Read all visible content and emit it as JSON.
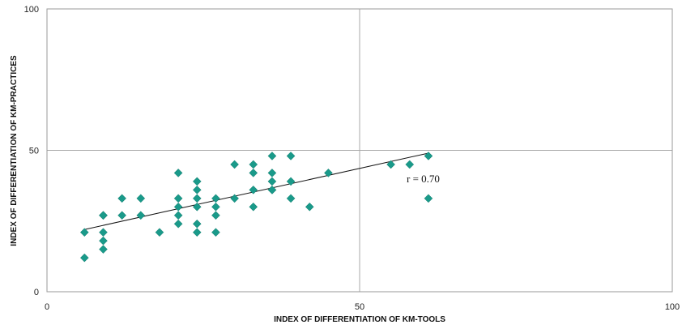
{
  "chart_data": {
    "type": "scatter",
    "title": "",
    "xlabel": "INDEX OF DIFFERENTIATION OF KM-TOOLS",
    "ylabel": "INDEX OF DIFFERENTIATION OF KM-PRACTICES",
    "xlim": [
      0,
      100
    ],
    "ylim": [
      0,
      100
    ],
    "x_ticks": [
      "0",
      "50",
      "100"
    ],
    "y_ticks": [
      "0",
      "50",
      "100"
    ],
    "grid": true,
    "legend": "none",
    "marker_color": "#1a9a8a",
    "trendline_color": "#111111",
    "annotation": "r = 0.70",
    "trendline": {
      "x": [
        6,
        61
      ],
      "y": [
        22,
        49
      ]
    },
    "series": [
      {
        "x": [
          6,
          6,
          9,
          9,
          9,
          9,
          9,
          12,
          12,
          15,
          15,
          18,
          21,
          21,
          21,
          21,
          21,
          24,
          24,
          24,
          24,
          24,
          24,
          27,
          27,
          27,
          27,
          30,
          30,
          33,
          33,
          33,
          33,
          36,
          36,
          36,
          36,
          36,
          39,
          39,
          39,
          42,
          45,
          55,
          58,
          61,
          61
        ],
        "y": [
          12,
          21,
          15,
          18,
          21,
          27,
          27,
          27,
          33,
          27,
          33,
          21,
          24,
          27,
          30,
          33,
          42,
          21,
          24,
          30,
          33,
          36,
          39,
          21,
          27,
          30,
          33,
          33,
          45,
          30,
          36,
          42,
          45,
          36,
          36,
          39,
          42,
          48,
          33,
          39,
          48,
          30,
          42,
          45,
          45,
          48,
          33
        ]
      }
    ]
  }
}
